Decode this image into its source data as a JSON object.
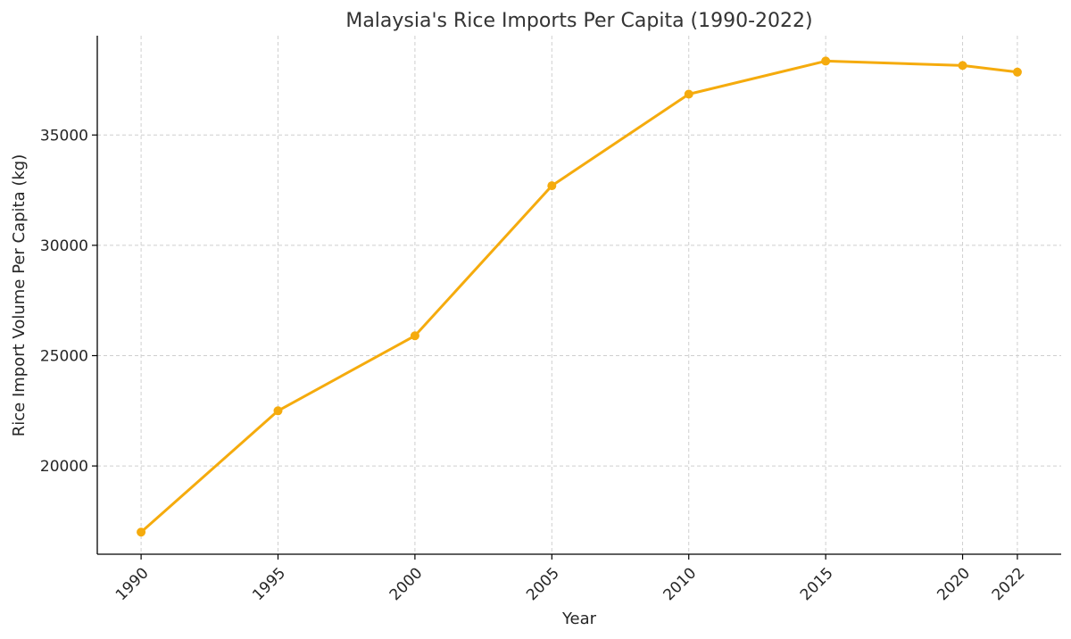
{
  "chart_data": {
    "type": "line",
    "title": "Malaysia's Rice Imports Per Capita (1990-2022)",
    "xlabel": "Year",
    "ylabel": "Rice Import Volume Per Capita (kg)",
    "x": [
      1990,
      1995,
      2000,
      2005,
      2010,
      2015,
      2020,
      2022
    ],
    "series": [
      {
        "values": [
          17000,
          22500,
          25900,
          32700,
          36850,
          38350,
          38150,
          37850
        ]
      }
    ],
    "xticks": [
      "1990",
      "1995",
      "2000",
      "2005",
      "2010",
      "2015",
      "2020",
      "2022"
    ],
    "yticks": [
      "20000",
      "25000",
      "30000",
      "35000"
    ],
    "xlim": [
      1988.4,
      2023.6
    ],
    "ylim": [
      16000,
      39500
    ],
    "grid": true,
    "line_color": "#f5ab0d"
  }
}
